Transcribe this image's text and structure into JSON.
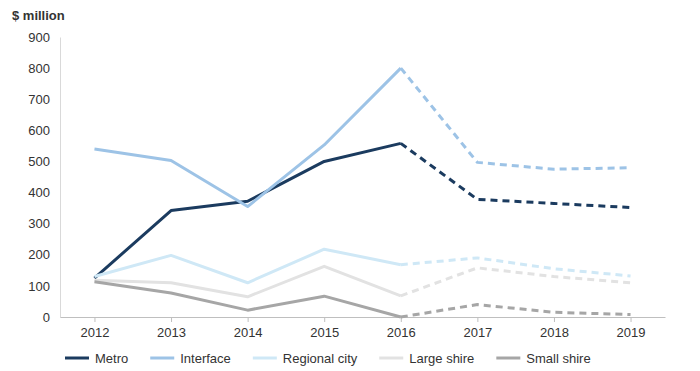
{
  "chart_data": {
    "type": "line",
    "y_label": "$ million",
    "categories": [
      "2012",
      "2013",
      "2014",
      "2015",
      "2016",
      "2017",
      "2018",
      "2019"
    ],
    "ylim": [
      0,
      900
    ],
    "yticks": [
      0,
      100,
      200,
      300,
      400,
      500,
      600,
      700,
      800,
      900
    ],
    "grid": false,
    "legend": "bottom",
    "series": [
      {
        "name": "Metro",
        "color": "#1b3b5f",
        "line_style": "solid",
        "values": [
          125,
          342,
          372,
          500,
          558,
          null,
          null,
          null
        ]
      },
      {
        "name": "Metro",
        "color": "#1b3b5f",
        "line_style": "dashed",
        "values": [
          null,
          null,
          null,
          null,
          558,
          378,
          365,
          352
        ]
      },
      {
        "name": "Interface",
        "color": "#9dc3e6",
        "line_style": "solid",
        "values": [
          540,
          503,
          355,
          553,
          800,
          null,
          null,
          null
        ]
      },
      {
        "name": "Interface",
        "color": "#9dc3e6",
        "line_style": "dashed",
        "values": [
          null,
          null,
          null,
          null,
          800,
          497,
          475,
          480
        ]
      },
      {
        "name": "Regional city",
        "color": "#cfe8f6",
        "line_style": "solid",
        "values": [
          130,
          198,
          110,
          218,
          168,
          null,
          null,
          null
        ]
      },
      {
        "name": "Regional city",
        "color": "#cfe8f6",
        "line_style": "dashed",
        "values": [
          null,
          null,
          null,
          null,
          168,
          190,
          155,
          132
        ]
      },
      {
        "name": "Large shire",
        "color": "#e2e2e2",
        "line_style": "solid",
        "values": [
          118,
          110,
          65,
          163,
          68,
          null,
          null,
          null
        ]
      },
      {
        "name": "Large shire",
        "color": "#e2e2e2",
        "line_style": "dashed",
        "values": [
          null,
          null,
          null,
          null,
          68,
          158,
          130,
          110
        ]
      },
      {
        "name": "Small shire",
        "color": "#a6a6a6",
        "line_style": "solid",
        "values": [
          113,
          77,
          22,
          67,
          0,
          null,
          null,
          null
        ]
      },
      {
        "name": "Small shire",
        "color": "#a6a6a6",
        "line_style": "dashed",
        "values": [
          null,
          null,
          null,
          null,
          0,
          40,
          15,
          8
        ]
      }
    ]
  }
}
